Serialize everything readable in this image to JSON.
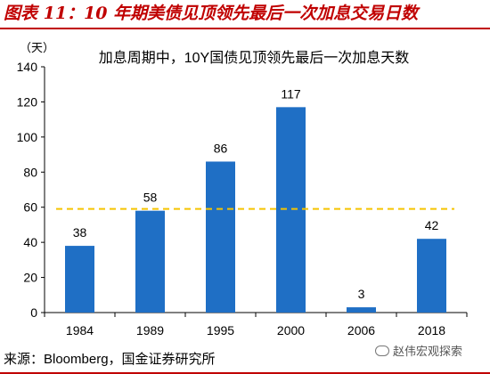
{
  "figure": {
    "title": "图表 11：10 年期美债见顶领先最后一次加息交易日数",
    "source": "来源：Bloomberg，国金证券研究所",
    "watermark": "赵伟宏观探索"
  },
  "chart_data": {
    "type": "bar",
    "title": "加息周期中，10Y国债见顶领先最后一次加息天数",
    "unit_label": "（天）",
    "categories": [
      "1984",
      "1989",
      "1995",
      "2000",
      "2006",
      "2018"
    ],
    "values": [
      38,
      58,
      86,
      117,
      3,
      42
    ],
    "value_labels": [
      "38",
      "58",
      "86",
      "117",
      "3",
      "42"
    ],
    "ylim": [
      0,
      140
    ],
    "yticks": [
      0,
      20,
      40,
      60,
      80,
      100,
      120,
      140
    ],
    "ytick_labels": [
      "0",
      "20",
      "40",
      "60",
      "80",
      "100",
      "120",
      "140"
    ],
    "reference_line": {
      "value": 59,
      "style": "dashed"
    },
    "bar_color": "#1f6fc5",
    "reference_color": "#f5c400",
    "grid": false,
    "legend": "none"
  }
}
